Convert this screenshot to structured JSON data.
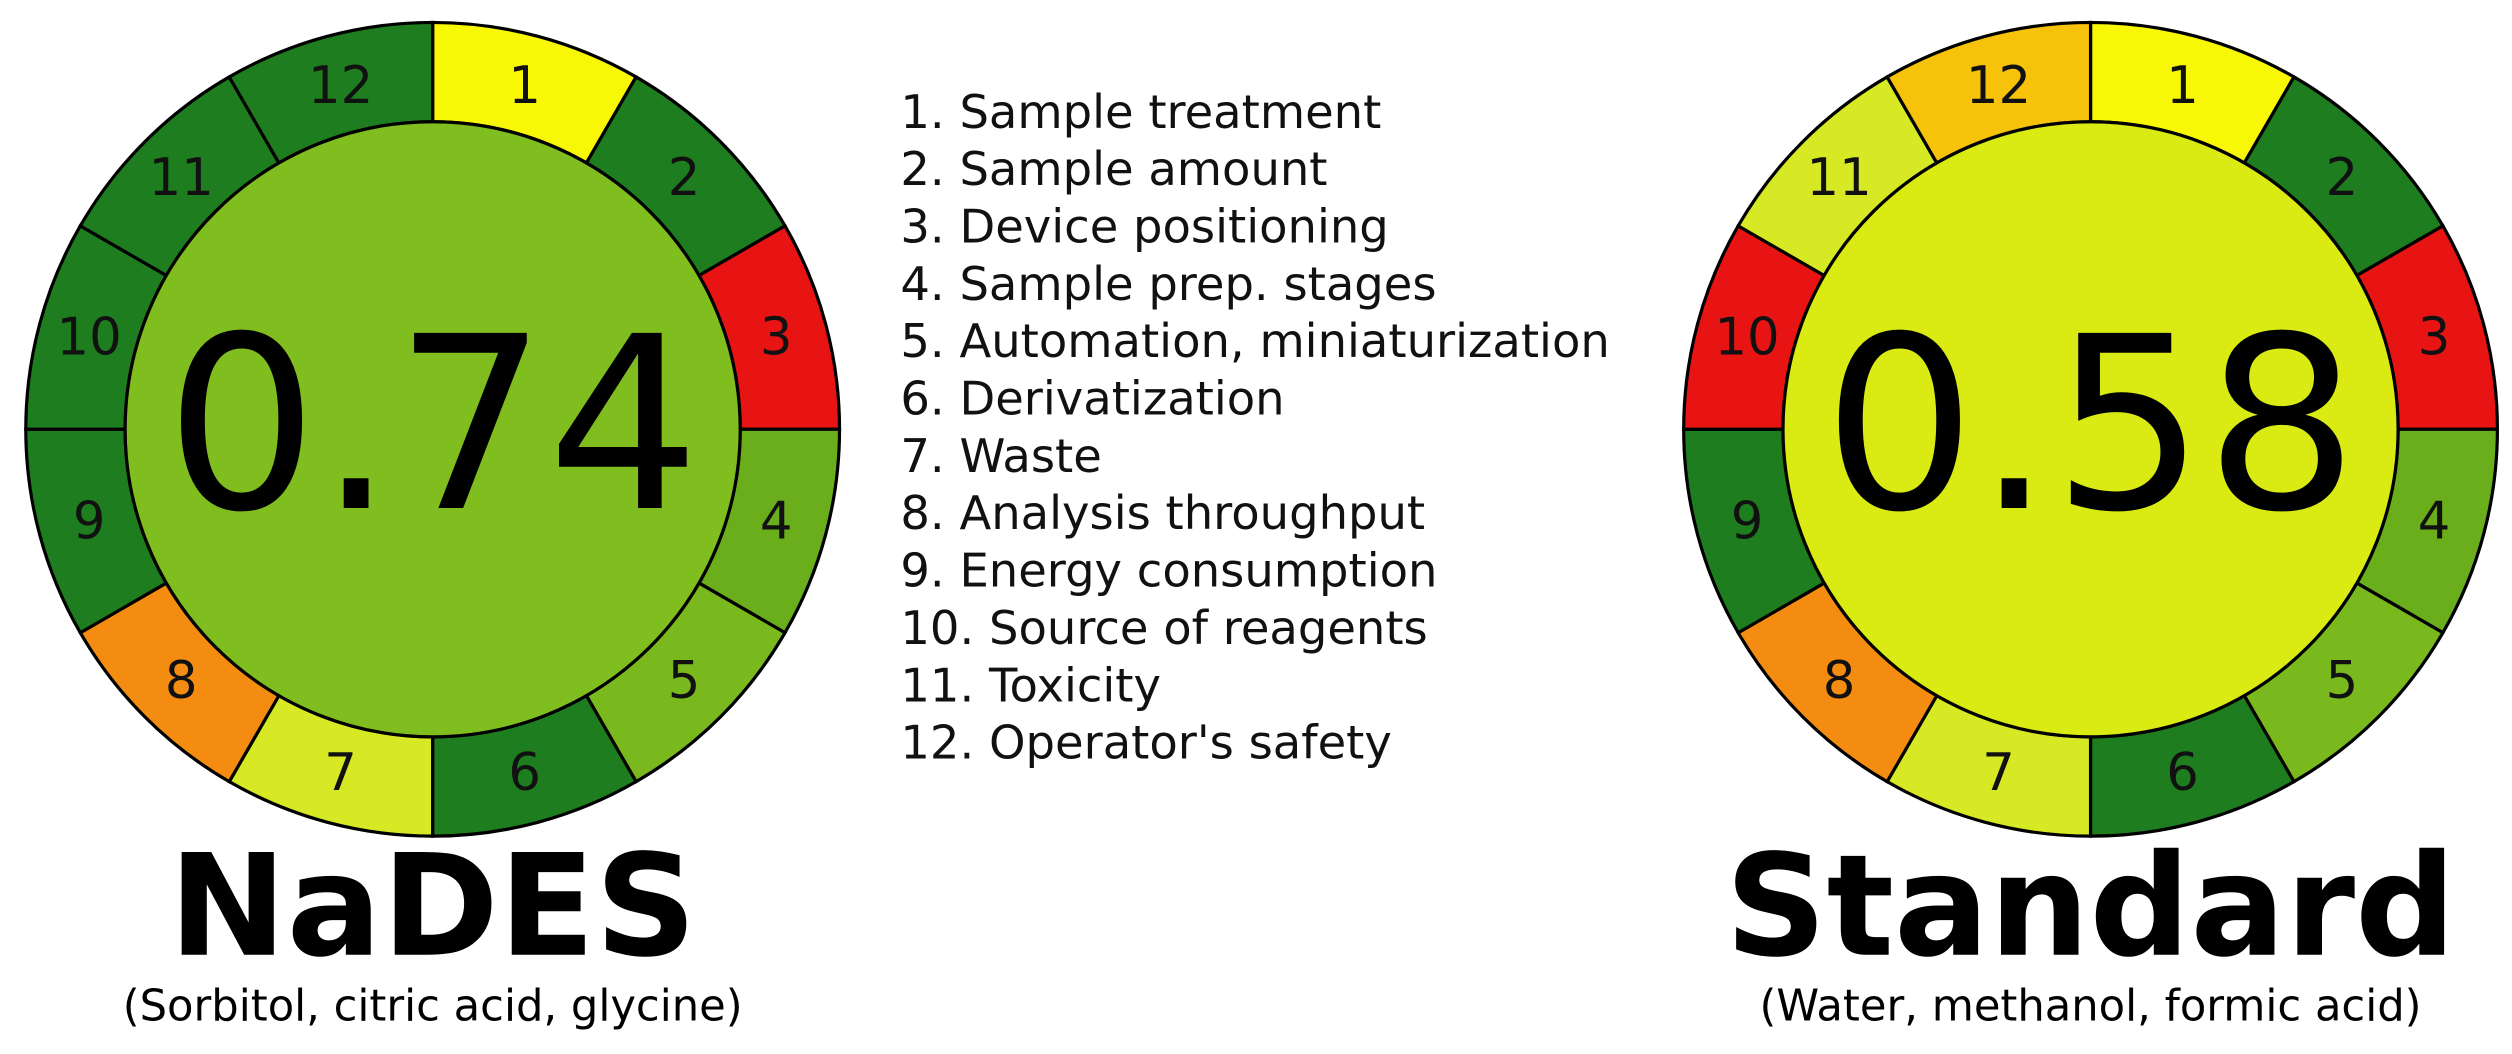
{
  "pictograms": [
    {
      "score": "0.74",
      "title": "NaDES",
      "subtitle": "(Sorbitol, citric acid, glycine)",
      "center_color": "#80bd1e",
      "segments": [
        {
          "label": "1",
          "color": "#f7f706"
        },
        {
          "label": "2",
          "color": "#1e7d1e"
        },
        {
          "label": "3",
          "color": "#e81414"
        },
        {
          "label": "4",
          "color": "#6aae1c"
        },
        {
          "label": "5",
          "color": "#7ab91e"
        },
        {
          "label": "6",
          "color": "#1e7d1e"
        },
        {
          "label": "7",
          "color": "#d6e924"
        },
        {
          "label": "8",
          "color": "#f58c12"
        },
        {
          "label": "9",
          "color": "#1e7d1e"
        },
        {
          "label": "10",
          "color": "#1e7d1e"
        },
        {
          "label": "11",
          "color": "#1e7d1e"
        },
        {
          "label": "12",
          "color": "#1e7d1e"
        }
      ]
    },
    {
      "score": "0.58",
      "title": "Standard",
      "subtitle": "(Water, methanol, formic acid)",
      "center_color": "#d9eb12",
      "segments": [
        {
          "label": "1",
          "color": "#f7f706"
        },
        {
          "label": "2",
          "color": "#1e7d1e"
        },
        {
          "label": "3",
          "color": "#e81414"
        },
        {
          "label": "4",
          "color": "#6aae1c"
        },
        {
          "label": "5",
          "color": "#7ab91e"
        },
        {
          "label": "6",
          "color": "#1e7d1e"
        },
        {
          "label": "7",
          "color": "#d6e924"
        },
        {
          "label": "8",
          "color": "#f58c12"
        },
        {
          "label": "9",
          "color": "#1e7d1e"
        },
        {
          "label": "10",
          "color": "#e81414"
        },
        {
          "label": "11",
          "color": "#d6e924"
        },
        {
          "label": "12",
          "color": "#f6c20a"
        }
      ]
    }
  ],
  "legend": [
    "1. Sample treatment",
    "2. Sample amount",
    "3. Device positioning",
    "4. Sample prep. stages",
    "5. Automation, miniaturization",
    "6. Derivatization",
    "7. Waste",
    "8. Analysis throughput",
    "9. Energy consumption",
    "10. Source of reagents",
    "11. Toxicity",
    "12. Operator's safety"
  ]
}
